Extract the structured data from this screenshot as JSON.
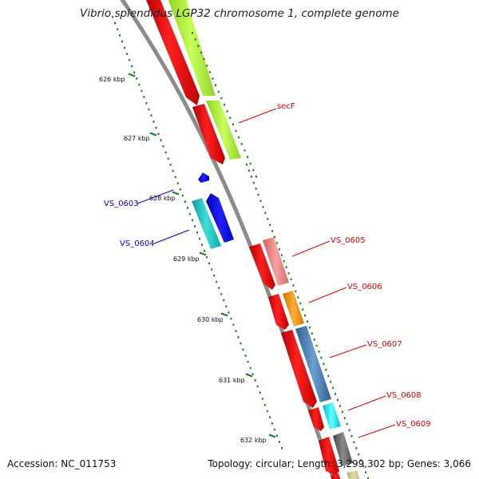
{
  "title": "Vibrio splendidus LGP32 chromosome 1, complete genome",
  "footer": {
    "accession_label": "Accession:",
    "accession": "NC_011753",
    "topology_label": "Topology:",
    "topology": "circular",
    "length_label": "Length:",
    "length": "3,299,302 bp",
    "genes_label": "Genes:",
    "genes": "3,066"
  },
  "ticks": [
    {
      "label": "626 kbp"
    },
    {
      "label": "627 kbp"
    },
    {
      "label": "628 kbp"
    },
    {
      "label": "629 kbp"
    },
    {
      "label": "630 kbp"
    },
    {
      "label": "631 kbp"
    },
    {
      "label": "632 kbp"
    }
  ],
  "gene_labels": [
    {
      "text": "secF",
      "color": "#e00000"
    },
    {
      "text": "VS_0603",
      "color": "#0000cc"
    },
    {
      "text": "VS_0604",
      "color": "#0000cc"
    },
    {
      "text": "VS_0605",
      "color": "#e00000"
    },
    {
      "text": "VS_0606",
      "color": "#e00000"
    },
    {
      "text": "VS_0607",
      "color": "#e00000"
    },
    {
      "text": "VS_0608",
      "color": "#e00000"
    },
    {
      "text": "VS_0609",
      "color": "#e00000"
    }
  ],
  "colors": {
    "backbone": "#8c8c8c",
    "tick": "#1e7a1e",
    "forward_gene": "#ff0000",
    "reverse_gene": "#0000ff",
    "cog_lime": "#adff2f",
    "cog_salmon": "#f08080",
    "cog_orange": "#ff9900",
    "cog_steelblue": "#4682b4",
    "cog_cyan": "#00e5ee",
    "cog_gray": "#6e6e6e",
    "cog_teal": "#20c0c0"
  }
}
